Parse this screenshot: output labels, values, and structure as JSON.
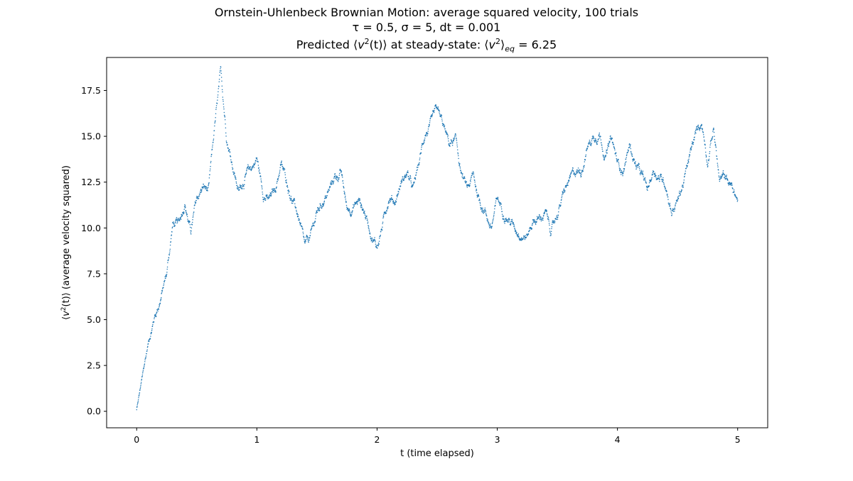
{
  "figure": {
    "title_line_1": "Ornstein-Uhlenbeck Brownian Motion: average squared velocity, 100 trials",
    "title_line_2": "τ = 0.5, σ = 5, dt = 0.001",
    "title_line_3_prefix": "Predicted ⟨",
    "title_line_3_mid1": "(t)⟩ at steady-state: ⟨",
    "title_line_3_mid2": "⟩",
    "title_line_3_suffix": " = 6.25",
    "v_symbol": "v",
    "superscript_2": "2",
    "subscript_eq": "eq"
  },
  "chart_data": {
    "type": "scatter",
    "xlabel": "t (time elapsed)",
    "ylabel_prefix": "⟨",
    "ylabel_mid": "(t)⟩ (average velocity squared)",
    "xlim": [
      -0.25,
      5.25
    ],
    "ylim": [
      -0.9,
      19.3
    ],
    "x_ticks": [
      0,
      1,
      2,
      3,
      4,
      5
    ],
    "x_tick_labels": [
      "0",
      "1",
      "2",
      "3",
      "4",
      "5"
    ],
    "y_ticks": [
      0,
      2.5,
      5,
      7.5,
      10,
      12.5,
      15,
      17.5
    ],
    "y_tick_labels": [
      "0.0",
      "2.5",
      "5.0",
      "7.5",
      "10.0",
      "12.5",
      "15.0",
      "17.5"
    ],
    "marker_color": "#1f77b4",
    "grid": false,
    "dt": 0.001,
    "t_start": 0,
    "t_end": 5,
    "series": [
      {
        "x": [
          0,
          0.05,
          0.1,
          0.15,
          0.2,
          0.25,
          0.3,
          0.35,
          0.4,
          0.45,
          0.5,
          0.55,
          0.6,
          0.65,
          0.7,
          0.75,
          0.8,
          0.85,
          0.9,
          0.95,
          1.0,
          1.05,
          1.1,
          1.15,
          1.2,
          1.25,
          1.3,
          1.35,
          1.4,
          1.45,
          1.5,
          1.55,
          1.6,
          1.65,
          1.7,
          1.75,
          1.8,
          1.85,
          1.9,
          1.95,
          2.0,
          2.05,
          2.1,
          2.15,
          2.2,
          2.25,
          2.3,
          2.35,
          2.4,
          2.45,
          2.5,
          2.55,
          2.6,
          2.65,
          2.7,
          2.75,
          2.8,
          2.85,
          2.9,
          2.95,
          3.0,
          3.05,
          3.1,
          3.15,
          3.2,
          3.25,
          3.3,
          3.35,
          3.4,
          3.45,
          3.5,
          3.55,
          3.6,
          3.65,
          3.7,
          3.75,
          3.8,
          3.85,
          3.9,
          3.95,
          4.0,
          4.05,
          4.1,
          4.15,
          4.2,
          4.25,
          4.3,
          4.35,
          4.4,
          4.45,
          4.5,
          4.55,
          4.6,
          4.65,
          4.7,
          4.75,
          4.8,
          4.85,
          4.9,
          4.95,
          5.0
        ],
        "y": [
          0.1,
          2.0,
          3.8,
          5.2,
          6.2,
          7.5,
          10.2,
          10.1,
          11.5,
          9.8,
          11.5,
          12.2,
          12.0,
          15.5,
          18.3,
          15.0,
          13.5,
          12.0,
          12.8,
          13.2,
          13.8,
          12.0,
          11.5,
          12.0,
          13.5,
          12.5,
          11.5,
          10.5,
          8.8,
          9.5,
          10.8,
          11.5,
          12.0,
          12.8,
          13.0,
          11.0,
          11.2,
          11.5,
          10.8,
          9.8,
          9.0,
          10.3,
          11.8,
          11.5,
          12.5,
          13.0,
          12.0,
          13.5,
          15.2,
          15.5,
          16.3,
          15.5,
          14.5,
          14.8,
          13.0,
          12.0,
          12.8,
          11.5,
          11.0,
          10.0,
          11.5,
          11.0,
          10.5,
          10.0,
          9.8,
          9.6,
          10.5,
          10.5,
          10.8,
          9.8,
          10.8,
          11.8,
          12.5,
          13.0,
          13.2,
          14.5,
          15.0,
          15.3,
          14.0,
          14.8,
          13.5,
          13.2,
          14.5,
          13.5,
          12.8,
          12.0,
          13.2,
          12.8,
          12.5,
          11.0,
          11.5,
          12.5,
          13.8,
          15.0,
          15.8,
          13.8,
          15.5,
          12.5,
          12.8,
          12.2,
          11.5
        ]
      }
    ]
  }
}
